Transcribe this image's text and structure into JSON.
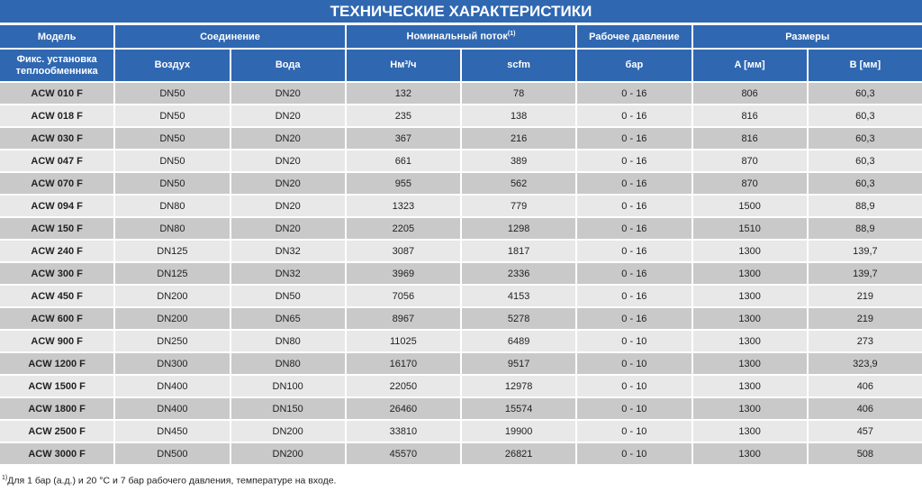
{
  "title": "ТЕХНИЧЕСКИЕ ХАРАКТЕРИСТИКИ",
  "headers": {
    "model": "Модель",
    "connection": "Соединение",
    "flow": "Номинальный поток",
    "flow_sup": "(1)",
    "pressure": "Рабочее давление",
    "dimensions": "Размеры",
    "model_sub": "Фикс. установка теплообменника",
    "air": "Воздух",
    "water": "Вода",
    "nm3": "Нм³/ч",
    "scfm": "scfm",
    "bar": "бар",
    "a": "A [мм]",
    "b": "B [мм]"
  },
  "rows": [
    [
      "ACW 010 F",
      "DN50",
      "DN20",
      "132",
      "78",
      "0 - 16",
      "806",
      "60,3"
    ],
    [
      "ACW 018 F",
      "DN50",
      "DN20",
      "235",
      "138",
      "0 - 16",
      "816",
      "60,3"
    ],
    [
      "ACW 030 F",
      "DN50",
      "DN20",
      "367",
      "216",
      "0 - 16",
      "816",
      "60,3"
    ],
    [
      "ACW 047 F",
      "DN50",
      "DN20",
      "661",
      "389",
      "0 - 16",
      "870",
      "60,3"
    ],
    [
      "ACW 070 F",
      "DN50",
      "DN20",
      "955",
      "562",
      "0 - 16",
      "870",
      "60,3"
    ],
    [
      "ACW 094 F",
      "DN80",
      "DN20",
      "1323",
      "779",
      "0 - 16",
      "1500",
      "88,9"
    ],
    [
      "ACW 150 F",
      "DN80",
      "DN20",
      "2205",
      "1298",
      "0 - 16",
      "1510",
      "88,9"
    ],
    [
      "ACW 240 F",
      "DN125",
      "DN32",
      "3087",
      "1817",
      "0 - 16",
      "1300",
      "139,7"
    ],
    [
      "ACW 300 F",
      "DN125",
      "DN32",
      "3969",
      "2336",
      "0 - 16",
      "1300",
      "139,7"
    ],
    [
      "ACW 450 F",
      "DN200",
      "DN50",
      "7056",
      "4153",
      "0 - 16",
      "1300",
      "219"
    ],
    [
      "ACW 600 F",
      "DN200",
      "DN65",
      "8967",
      "5278",
      "0 - 16",
      "1300",
      "219"
    ],
    [
      "ACW 900 F",
      "DN250",
      "DN80",
      "11025",
      "6489",
      "0 - 10",
      "1300",
      "273"
    ],
    [
      "ACW 1200 F",
      "DN300",
      "DN80",
      "16170",
      "9517",
      "0 - 10",
      "1300",
      "323,9"
    ],
    [
      "ACW 1500 F",
      "DN400",
      "DN100",
      "22050",
      "12978",
      "0 - 10",
      "1300",
      "406"
    ],
    [
      "ACW 1800 F",
      "DN400",
      "DN150",
      "26460",
      "15574",
      "0 - 10",
      "1300",
      "406"
    ],
    [
      "ACW 2500 F",
      "DN450",
      "DN200",
      "33810",
      "19900",
      "0 - 10",
      "1300",
      "457"
    ],
    [
      "ACW 3000 F",
      "DN500",
      "DN200",
      "45570",
      "26821",
      "0 - 10",
      "1300",
      "508"
    ]
  ],
  "footnote_mark": "1)",
  "footnote": "Для 1 бар (а.д.) и 20 °С и 7 бар рабочего давления, температуре на входе.",
  "colors": {
    "header": "#2f67b1",
    "row_dark": "#c9c9c9",
    "row_light": "#e8e8e8"
  }
}
